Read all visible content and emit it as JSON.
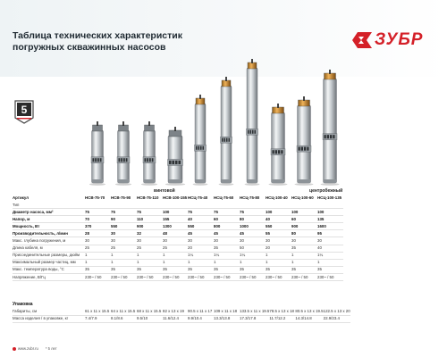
{
  "header": {
    "title_lines": [
      "Таблица технических характеристик",
      "погружных скважинных насосов"
    ],
    "brand": "ЗУБР",
    "badge_text": "5"
  },
  "categories": {
    "vintovoy": "винтовой",
    "centrobezhny": "центробежный"
  },
  "models": [
    "НСВ-75-70",
    "НСВ-75-90",
    "НСВ-75-110",
    "НСВ-100-155",
    "НСЦ-75-40",
    "НСЦ-75-60",
    "НСЦ-75-80",
    "НСЦ-100-40",
    "НСЦ-100-60",
    "НСЦ-100-135"
  ],
  "spec_header": "Артикул",
  "rows": [
    {
      "label": "Тип",
      "values": [
        "",
        "",
        "",
        "",
        "",
        "",
        "",
        "",
        "",
        ""
      ],
      "bold": false
    },
    {
      "label": "Диаметр насоса, мм²",
      "values": [
        "75",
        "75",
        "75",
        "100",
        "75",
        "75",
        "75",
        "100",
        "100",
        "100"
      ],
      "bold": true
    },
    {
      "label": "Напор, м",
      "values": [
        "70",
        "90",
        "110",
        "155",
        "40",
        "60",
        "80",
        "40",
        "60",
        "135"
      ],
      "bold": true
    },
    {
      "label": "Мощность, Вт",
      "values": [
        "370",
        "550",
        "900",
        "1300",
        "550",
        "800",
        "1000",
        "550",
        "900",
        "1600"
      ],
      "bold": true
    },
    {
      "label": "Производительность, л/мин",
      "values": [
        "28",
        "30",
        "32",
        "48",
        "45",
        "45",
        "45",
        "55",
        "80",
        "95"
      ],
      "bold": true
    },
    {
      "label": "Макс. глубина погружения, м",
      "values": [
        "30",
        "30",
        "30",
        "30",
        "30",
        "30",
        "30",
        "30",
        "30",
        "30"
      ],
      "bold": false
    },
    {
      "label": "Длина кабеля, м",
      "values": [
        "25",
        "25",
        "25",
        "25",
        "20",
        "35",
        "50",
        "20",
        "35",
        "40"
      ],
      "bold": false
    },
    {
      "label": "Присоединительные размеры, дюйм",
      "values": [
        "1",
        "1",
        "1",
        "1",
        "1¼",
        "1¼",
        "1¼",
        "1",
        "1",
        "1¼"
      ],
      "bold": false
    },
    {
      "label": "Максимальный размер частиц, мм",
      "values": [
        "1",
        "1",
        "1",
        "1",
        "1",
        "1",
        "1",
        "1",
        "1",
        "1"
      ],
      "bold": false
    },
    {
      "label": "Макс. температура воды, °С",
      "values": [
        "35",
        "35",
        "35",
        "35",
        "35",
        "35",
        "35",
        "35",
        "35",
        "35"
      ],
      "bold": false
    },
    {
      "label": "Напряжение, В/Гц",
      "values": [
        "230~ / 50",
        "230~ / 50",
        "230~ / 50",
        "230~ / 50",
        "230~ / 50",
        "230~ / 50",
        "230~ / 50",
        "230~ / 50",
        "230~ / 50",
        "230~ / 50"
      ],
      "bold": false
    }
  ],
  "packaging": {
    "title": "Упаковка",
    "rows": [
      {
        "label": "Габариты, см",
        "values": [
          "61 x 11 x 15.5",
          "64 x 11 x 15.5",
          "68 x 11 x 15.5",
          "82 x 13 x 19",
          "90.5 x 11 x 17",
          "109 x 11 x 18",
          "133.5 x 11 x 19.5",
          "78.5 x 13 x 18",
          "80.5 x 13 x 19.5",
          "122.5 x 13 x 20"
        ]
      },
      {
        "label": "Масса изделия / в упаковке, кг",
        "values": [
          "7.4/7.9",
          "8.1/8.6",
          "9.5/10",
          "11.6/12.4",
          "9.9/10.4",
          "13.3/13.8",
          "17.3/17.8",
          "11.7/12.2",
          "14.3/14.8",
          "22.9/23.4"
        ]
      }
    ]
  },
  "footer": {
    "site": "www.zubr.ru",
    "phone": "* 5 лет"
  }
}
